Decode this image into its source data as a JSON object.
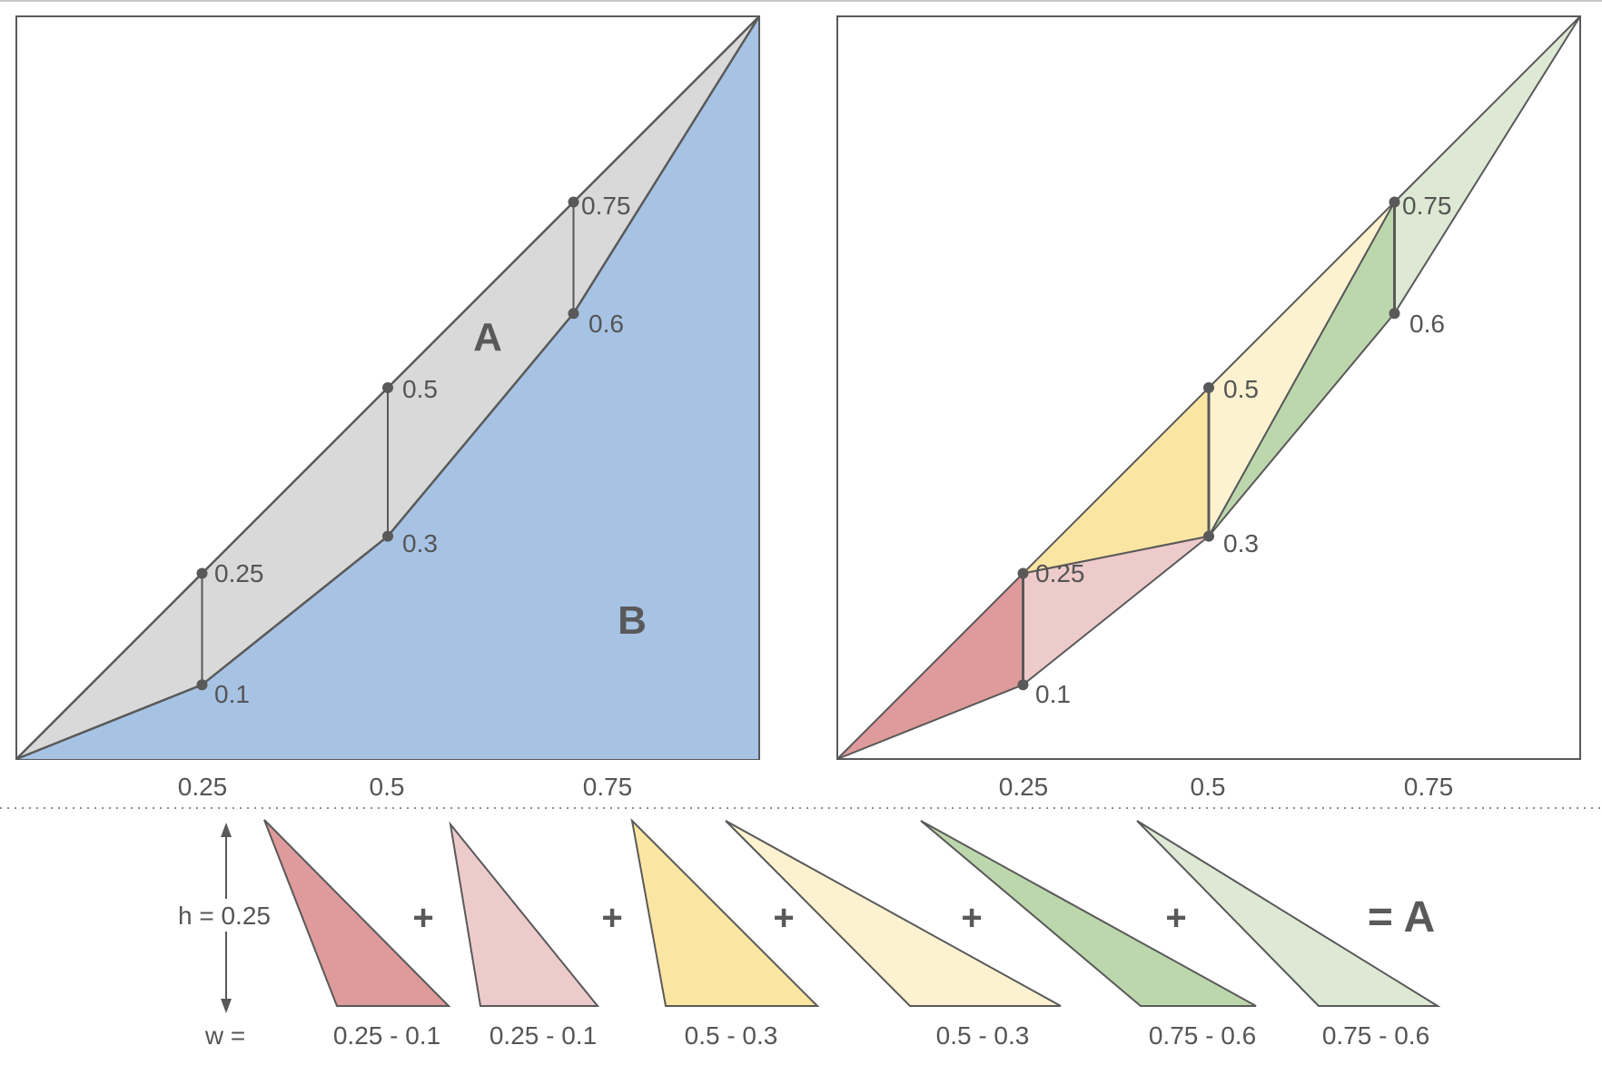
{
  "left_panel": {
    "points": [
      {
        "label": "0.25"
      },
      {
        "label": "0.1"
      },
      {
        "label": "0.5"
      },
      {
        "label": "0.3"
      },
      {
        "label": "0.75"
      },
      {
        "label": "0.6"
      }
    ],
    "region_a_label": "A",
    "region_b_label": "B",
    "x_ticks": [
      "0.25",
      "0.5",
      "0.75"
    ],
    "colors": {
      "gap": "#d9d9d9",
      "under": "#a7c3e4",
      "stroke": "#595959"
    }
  },
  "right_panel": {
    "points": [
      {
        "label": "0.25"
      },
      {
        "label": "0.1"
      },
      {
        "label": "0.5"
      },
      {
        "label": "0.3"
      },
      {
        "label": "0.75"
      },
      {
        "label": "0.6"
      }
    ],
    "x_ticks": [
      "0.25",
      "0.5",
      "0.75"
    ],
    "colors": {
      "red_dark": "#df9b9b",
      "red_light": "#eecbcb",
      "yellow_dark": "#fbe5a2",
      "yellow_light": "#fdf2d0",
      "green_dark": "#bcd7ac",
      "green_light": "#dde9d4"
    }
  },
  "bottom_row": {
    "height_label": "h = 0.25",
    "width_prefix": "w =",
    "triangles": [
      {
        "color": "#df9b9b",
        "width_label": "0.25 - 0.1"
      },
      {
        "color": "#eecbcb",
        "width_label": "0.25 - 0.1"
      },
      {
        "color": "#fbe5a2",
        "width_label": "0.5 - 0.3"
      },
      {
        "color": "#fdf2d0",
        "width_label": "0.5 - 0.3"
      },
      {
        "color": "#bcd7ac",
        "width_label": "0.75 - 0.6"
      },
      {
        "color": "#dde9d4",
        "width_label": "0.75 - 0.6"
      }
    ],
    "plus_sign": "+",
    "result_label": "= A"
  }
}
